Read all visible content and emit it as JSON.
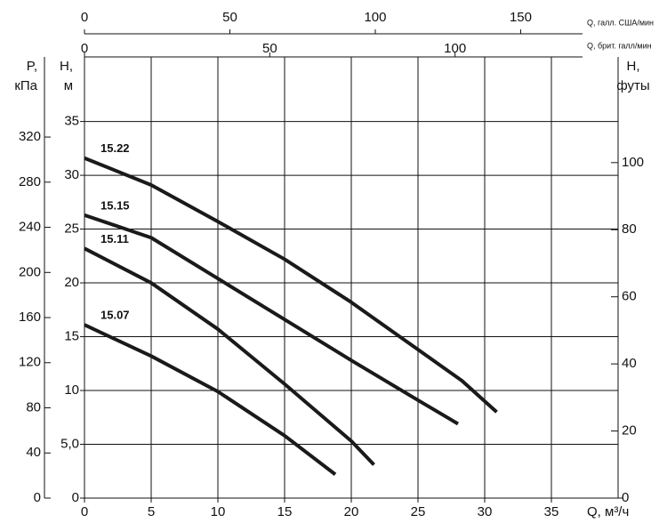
{
  "chart_data": {
    "type": "line",
    "xlabel": "Q, м³/ч",
    "xlim": [
      0,
      40
    ],
    "xticks": [
      0,
      5,
      10,
      15,
      20,
      25,
      30,
      35
    ],
    "ylabel": [
      "H,",
      "м"
    ],
    "ylim": [
      0,
      41
    ],
    "yticks": [
      0,
      {
        "value": 5,
        "label": "5,0"
      },
      10,
      15,
      20,
      25,
      30,
      35
    ],
    "y2label": [
      "H,",
      "футы"
    ],
    "y2lim": [
      0,
      131.5
    ],
    "y2ticks": [
      0,
      20,
      40,
      60,
      80,
      100
    ],
    "p_axis": {
      "label": [
        "P,",
        "кПа"
      ],
      "lim": [
        0,
        391
      ],
      "ticks": [
        0,
        40,
        80,
        120,
        160,
        200,
        240,
        280,
        320
      ]
    },
    "us_gal_axis": {
      "label": "Q, галл. США/мин",
      "lim": [
        0,
        183.5
      ],
      "ticks": [
        0,
        50,
        100,
        150
      ]
    },
    "imp_gal_axis": {
      "label": "Q, брит. галл/мин",
      "lim": [
        0,
        144
      ],
      "ticks": [
        0,
        50,
        100
      ]
    },
    "grid": true,
    "series": [
      {
        "name": "15.22",
        "color": "#1a1a1a",
        "x": [
          0,
          5,
          10,
          15,
          20,
          25,
          28.3,
          30.9
        ],
        "values": [
          31.6,
          29.1,
          25.7,
          22.2,
          18.2,
          13.8,
          10.9,
          8.0
        ]
      },
      {
        "name": "15.15",
        "color": "#1a1a1a",
        "x": [
          0,
          5,
          10,
          15,
          20,
          25,
          28
        ],
        "values": [
          26.3,
          24.2,
          20.4,
          16.6,
          12.8,
          9.1,
          6.9
        ]
      },
      {
        "name": "15.11",
        "color": "#1a1a1a",
        "x": [
          0,
          5,
          10,
          15,
          20,
          21.7
        ],
        "values": [
          23.2,
          20.0,
          15.7,
          10.6,
          5.3,
          3.1
        ]
      },
      {
        "name": "15.07",
        "color": "#1a1a1a",
        "x": [
          0,
          5,
          10,
          15,
          18.8
        ],
        "values": [
          16.1,
          13.2,
          9.9,
          5.8,
          2.2
        ]
      }
    ]
  }
}
